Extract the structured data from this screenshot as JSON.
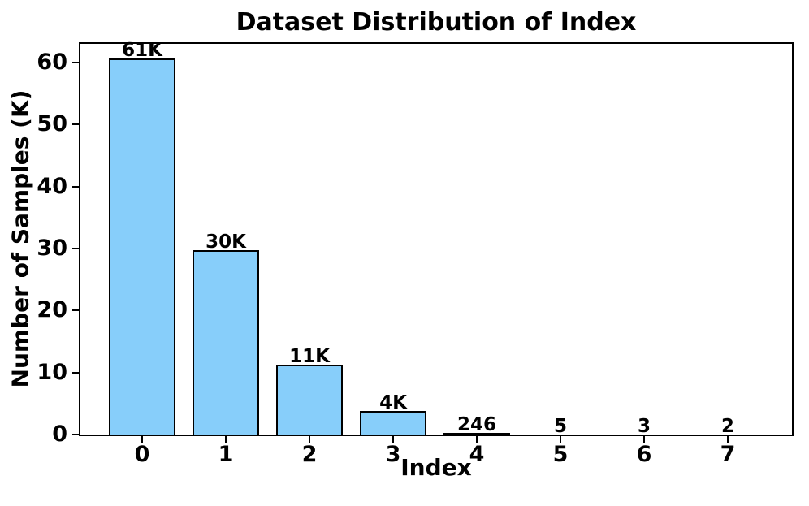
{
  "chart_data": {
    "type": "bar",
    "title": "Dataset Distribution of Index",
    "xlabel": "Index",
    "ylabel": "Number of Samples (K)",
    "categories": [
      "0",
      "1",
      "2",
      "3",
      "4",
      "5",
      "6",
      "7"
    ],
    "values_samples": [
      60700,
      29700,
      11300,
      3800,
      246,
      5,
      3,
      2
    ],
    "values_k": [
      60.7,
      29.7,
      11.3,
      3.8,
      0.246,
      0.005,
      0.003,
      0.002
    ],
    "bar_labels": [
      "61K",
      "30K",
      "11K",
      "4K",
      "246",
      "5",
      "3",
      "2"
    ],
    "yticks": [
      0,
      10,
      20,
      30,
      40,
      50,
      60
    ],
    "ylim": [
      0,
      63
    ],
    "grid": false,
    "legend": null,
    "bar_color": "#87CEFA",
    "bar_edge_color": "#000000",
    "text_color": "#000000",
    "background_color": "#ffffff"
  }
}
